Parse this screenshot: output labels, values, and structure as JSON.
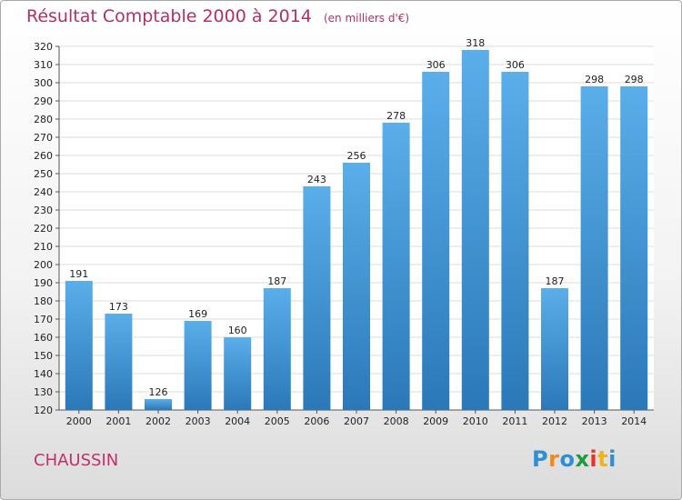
{
  "title": "Résultat Comptable 2000 à 2014",
  "unit_note": "(en milliers d'€)",
  "commune": "CHAUSSIN",
  "logo": {
    "letters": [
      "P",
      "r",
      "o",
      "x",
      "i",
      "t",
      "i"
    ],
    "colors": [
      "#2d8fd4",
      "#f08a18",
      "#2d8fd4",
      "#1f9b3b",
      "#e8322a",
      "#f0b41a",
      "#2d8fd4"
    ]
  },
  "colors": {
    "title": "#b0306a",
    "bar_light": "#5aaeea",
    "bar_dark": "#2b78b8",
    "grid": "#dddddd",
    "text": "#222222"
  },
  "chart_data": {
    "type": "bar",
    "title": "Résultat Comptable 2000 à 2014",
    "subtitle": "(en milliers d'€)",
    "xlabel": "",
    "ylabel": "",
    "categories": [
      "2000",
      "2001",
      "2002",
      "2003",
      "2004",
      "2005",
      "2006",
      "2007",
      "2008",
      "2009",
      "2010",
      "2011",
      "2012",
      "2013",
      "2014"
    ],
    "values": [
      191,
      173,
      126,
      169,
      160,
      187,
      243,
      256,
      278,
      306,
      318,
      306,
      187,
      298,
      298
    ],
    "ylim": [
      120,
      320
    ],
    "yticks": [
      120,
      130,
      140,
      150,
      160,
      170,
      180,
      190,
      200,
      210,
      220,
      230,
      240,
      250,
      260,
      270,
      280,
      290,
      300,
      310,
      320
    ],
    "grid": true,
    "legend": "none"
  }
}
